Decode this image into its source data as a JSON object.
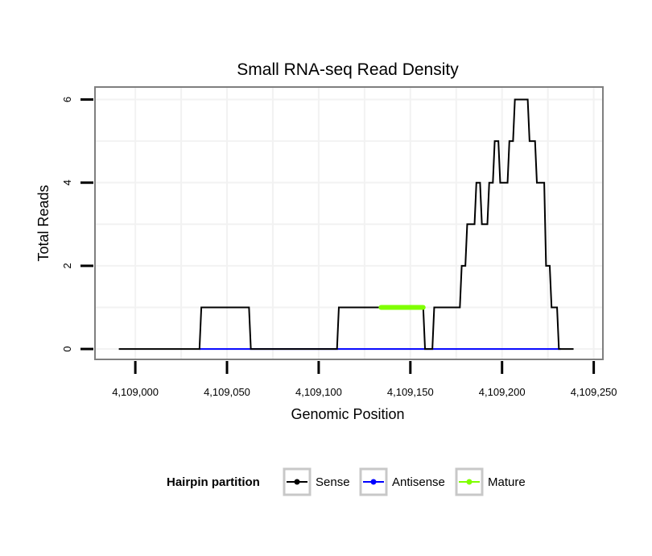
{
  "chart_data": {
    "type": "line",
    "title": "Small RNA-seq Read Density",
    "xlabel": "Genomic Position",
    "ylabel": "Total Reads",
    "xlim": [
      4108978,
      4109255
    ],
    "ylim": [
      -0.25,
      6.3
    ],
    "x_ticks": [
      4109000,
      4109050,
      4109100,
      4109150,
      4109200,
      4109250
    ],
    "x_tick_labels": [
      "4,109,000",
      "4,109,050",
      "4,109,100",
      "4,109,150",
      "4,109,200",
      "4,109,250"
    ],
    "y_ticks": [
      0,
      2,
      4,
      6
    ],
    "y_tick_labels": [
      "0",
      "2",
      "4",
      "6"
    ],
    "grid": true,
    "legend": {
      "title": "Hairpin partition",
      "position": "bottom",
      "entries": [
        {
          "name": "Sense",
          "color": "#000000"
        },
        {
          "name": "Antisense",
          "color": "#0000ff"
        },
        {
          "name": "Mature",
          "color": "#7fff00"
        }
      ]
    },
    "series": [
      {
        "name": "Sense",
        "color": "#000000",
        "x": [
          4108991,
          4109035,
          4109036,
          4109062,
          4109063,
          4109110,
          4109111,
          4109157,
          4109158,
          4109162,
          4109163,
          4109177,
          4109178,
          4109180,
          4109181,
          4109185,
          4109186,
          4109188,
          4109189,
          4109192,
          4109193,
          4109195,
          4109196,
          4109198,
          4109199,
          4109203,
          4109204,
          4109206,
          4109207,
          4109208,
          4109209,
          4109214,
          4109215,
          4109218,
          4109219,
          4109223,
          4109224,
          4109226,
          4109227,
          4109230,
          4109231,
          4109239
        ],
        "y": [
          0,
          0,
          1,
          1,
          0,
          0,
          1,
          1,
          0,
          0,
          1,
          1,
          2,
          2,
          3,
          3,
          4,
          4,
          3,
          3,
          4,
          4,
          5,
          5,
          4,
          4,
          5,
          5,
          6,
          6,
          6,
          6,
          5,
          5,
          4,
          4,
          2,
          2,
          1,
          1,
          0,
          0
        ]
      },
      {
        "name": "Antisense",
        "color": "#0000ff",
        "x": [
          4109035,
          4109232
        ],
        "y": [
          0,
          0
        ]
      },
      {
        "name": "Mature",
        "color": "#7fff00",
        "x": [
          4109134,
          4109157
        ],
        "y": [
          1,
          1
        ]
      }
    ]
  }
}
